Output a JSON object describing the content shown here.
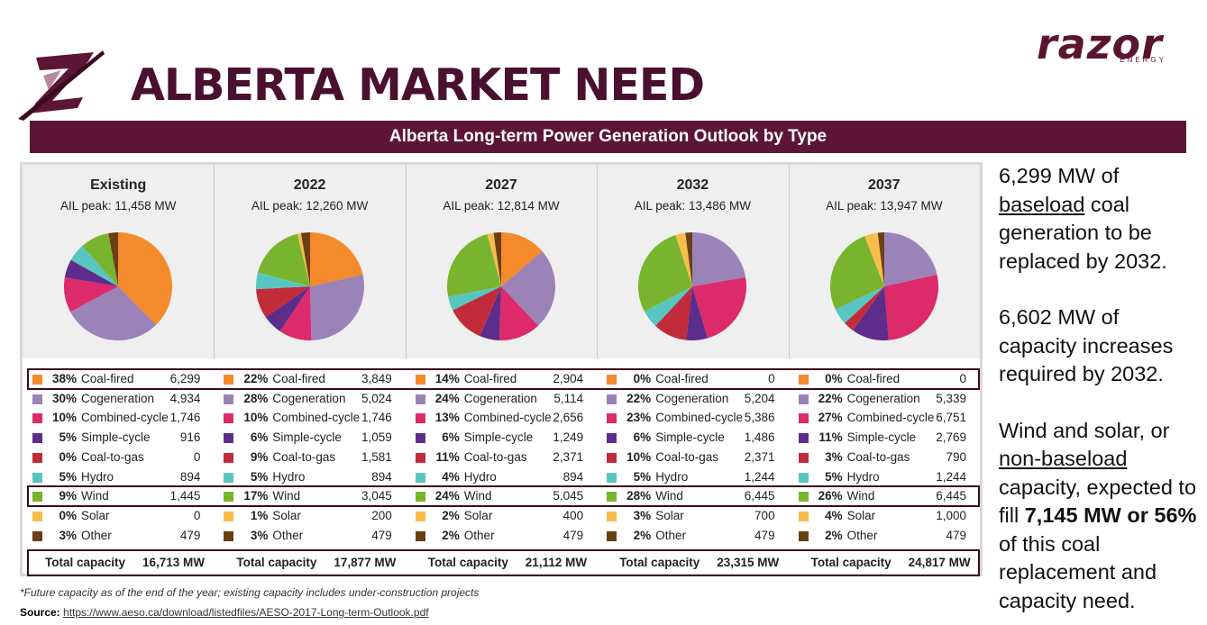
{
  "header": {
    "title": "ALBERTA MARKET NEED",
    "banner": "Alberta Long-term Power Generation Outlook by Type",
    "brand_name": "razor",
    "brand_sub": "ENERGY"
  },
  "colors": {
    "brand": "#5c1535",
    "Coal-fired": "#f38a2b",
    "Cogeneration": "#9b83b8",
    "Combined-cycle": "#dc2a6a",
    "Simple-cycle": "#5e2d8c",
    "Coal-to-gas": "#c22b39",
    "Hydro": "#58c6c0",
    "Wind": "#78b42d",
    "Solar": "#f7bd4a",
    "Other": "#6c3e16"
  },
  "chart_data": [
    {
      "type": "pie",
      "title": "Existing",
      "subtitle": "AIL peak: 11,458 MW",
      "total_label": "Total capacity",
      "total": "16,713 MW",
      "categories": [
        "Coal-fired",
        "Cogeneration",
        "Combined-cycle",
        "Simple-cycle",
        "Coal-to-gas",
        "Hydro",
        "Wind",
        "Solar",
        "Other"
      ],
      "percent_labels": [
        "38%",
        "30%",
        "10%",
        "5%",
        "0%",
        "5%",
        "9%",
        "0%",
        "3%"
      ],
      "values": [
        6299,
        4934,
        1746,
        916,
        0,
        894,
        1445,
        0,
        479
      ],
      "value_labels": [
        "6,299",
        "4,934",
        "1,746",
        "916",
        "0",
        "894",
        "1,445",
        "0",
        "479"
      ]
    },
    {
      "type": "pie",
      "title": "2022",
      "subtitle": "AIL peak: 12,260 MW",
      "total_label": "Total capacity",
      "total": "17,877 MW",
      "categories": [
        "Coal-fired",
        "Cogeneration",
        "Combined-cycle",
        "Simple-cycle",
        "Coal-to-gas",
        "Hydro",
        "Wind",
        "Solar",
        "Other"
      ],
      "percent_labels": [
        "22%",
        "28%",
        "10%",
        "6%",
        "9%",
        "5%",
        "17%",
        "1%",
        "3%"
      ],
      "values": [
        3849,
        5024,
        1746,
        1059,
        1581,
        894,
        3045,
        200,
        479
      ],
      "value_labels": [
        "3,849",
        "5,024",
        "1,746",
        "1,059",
        "1,581",
        "894",
        "3,045",
        "200",
        "479"
      ]
    },
    {
      "type": "pie",
      "title": "2027",
      "subtitle": "AIL peak: 12,814 MW",
      "total_label": "Total capacity",
      "total": "21,112 MW",
      "categories": [
        "Coal-fired",
        "Cogeneration",
        "Combined-cycle",
        "Simple-cycle",
        "Coal-to-gas",
        "Hydro",
        "Wind",
        "Solar",
        "Other"
      ],
      "percent_labels": [
        "14%",
        "24%",
        "13%",
        "6%",
        "11%",
        "4%",
        "24%",
        "2%",
        "2%"
      ],
      "values": [
        2904,
        5114,
        2656,
        1249,
        2371,
        894,
        5045,
        400,
        479
      ],
      "value_labels": [
        "2,904",
        "5,114",
        "2,656",
        "1,249",
        "2,371",
        "894",
        "5,045",
        "400",
        "479"
      ]
    },
    {
      "type": "pie",
      "title": "2032",
      "subtitle": "AIL peak: 13,486 MW",
      "total_label": "Total capacity",
      "total": "23,315 MW",
      "categories": [
        "Coal-fired",
        "Cogeneration",
        "Combined-cycle",
        "Simple-cycle",
        "Coal-to-gas",
        "Hydro",
        "Wind",
        "Solar",
        "Other"
      ],
      "percent_labels": [
        "0%",
        "22%",
        "23%",
        "6%",
        "10%",
        "5%",
        "28%",
        "3%",
        "2%"
      ],
      "values": [
        0,
        5204,
        5386,
        1486,
        2371,
        1244,
        6445,
        700,
        479
      ],
      "value_labels": [
        "0",
        "5,204",
        "5,386",
        "1,486",
        "2,371",
        "1,244",
        "6,445",
        "700",
        "479"
      ]
    },
    {
      "type": "pie",
      "title": "2037",
      "subtitle": "AIL peak: 13,947 MW",
      "total_label": "Total capacity",
      "total": "24,817 MW",
      "categories": [
        "Coal-fired",
        "Cogeneration",
        "Combined-cycle",
        "Simple-cycle",
        "Coal-to-gas",
        "Hydro",
        "Wind",
        "Solar",
        "Other"
      ],
      "percent_labels": [
        "0%",
        "22%",
        "27%",
        "11%",
        "3%",
        "5%",
        "26%",
        "4%",
        "2%"
      ],
      "values": [
        0,
        5339,
        6751,
        2769,
        790,
        1244,
        6445,
        1000,
        479
      ],
      "value_labels": [
        "0",
        "5,339",
        "6,751",
        "2,769",
        "790",
        "1,244",
        "6,445",
        "1,000",
        "479"
      ]
    }
  ],
  "footnote": "*Future capacity as of the end of the year; existing capacity includes under-construction projects",
  "source": {
    "label": "Source:",
    "url_text": "https://www.aeso.ca/download/listedfiles/AESO-2017-Long-term-Outlook.pdf"
  },
  "sidebar": {
    "p1_a": "6,299 MW of",
    "p1_u": "baseload",
    "p1_b": " coal generation to be replaced by 2032.",
    "p2": "6,602 MW of capacity increases required by 2032.",
    "p3_a": "Wind and solar, or",
    "p3_u": "non-baseload",
    "p3_b": " capacity, expected to fill ",
    "p3_bold": "7,145 MW or 56%",
    "p3_c": " of this coal replacement and capacity need."
  }
}
